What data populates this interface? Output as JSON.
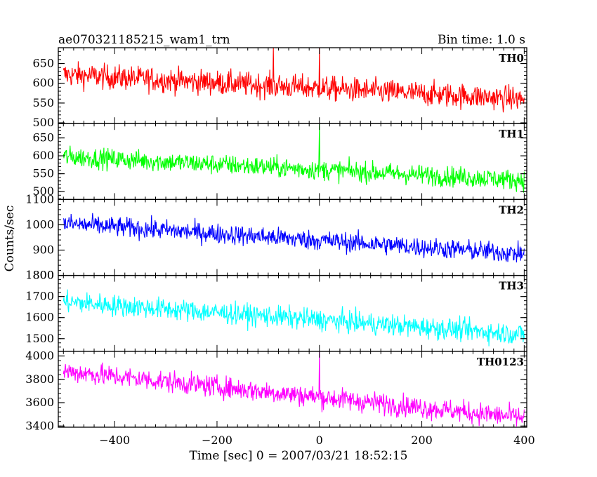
{
  "header": {
    "left_title": "ae070321185215_wam1_trn",
    "right_title": "Bin time: 1.0 s"
  },
  "chart_data": {
    "type": "line",
    "title": "ae070321185215_wam1_trn",
    "subtitle": "Bin time: 1.0 s",
    "xlabel": "Time [sec] 0 = 2007/03/21 18:52:15",
    "ylabel": "Counts/sec",
    "xlim": [
      -510,
      405
    ],
    "x_ticks": [
      -400,
      -200,
      0,
      200,
      400
    ],
    "x_start": -500,
    "x_end": 400,
    "x_step": 1,
    "grid": false,
    "panels": [
      {
        "name": "TH0",
        "color": "#ff0000",
        "ylim": [
          498,
          690
        ],
        "y_ticks": [
          500,
          550,
          600,
          650
        ],
        "trend_start": 622,
        "trend_end": 560,
        "noise": 22,
        "spikes": [
          {
            "x": -90,
            "y": 690
          },
          {
            "x": 0,
            "y": 690
          }
        ]
      },
      {
        "name": "TH1",
        "color": "#00ff00",
        "ylim": [
          478,
          690
        ],
        "y_ticks": [
          500,
          550,
          600,
          650
        ],
        "trend_start": 598,
        "trend_end": 532,
        "noise": 20,
        "spikes": [
          {
            "x": 0,
            "y": 690
          }
        ]
      },
      {
        "name": "TH2",
        "color": "#0000ff",
        "ylim": [
          800,
          1100
        ],
        "y_ticks": [
          800,
          900,
          1000,
          1100
        ],
        "trend_start": 1005,
        "trend_end": 885,
        "noise": 28,
        "spikes": []
      },
      {
        "name": "TH3",
        "color": "#00ffff",
        "ylim": [
          1440,
          1800
        ],
        "y_ticks": [
          1500,
          1600,
          1700,
          1800
        ],
        "trend_start": 1675,
        "trend_end": 1520,
        "noise": 36,
        "spikes": []
      },
      {
        "name": "TH0123",
        "color": "#ff00ff",
        "ylim": [
          3390,
          4040
        ],
        "y_ticks": [
          3400,
          3600,
          3800,
          4000
        ],
        "trend_start": 3870,
        "trend_end": 3470,
        "noise": 65,
        "spikes": [
          {
            "x": 0,
            "y": 4040
          }
        ]
      }
    ]
  }
}
